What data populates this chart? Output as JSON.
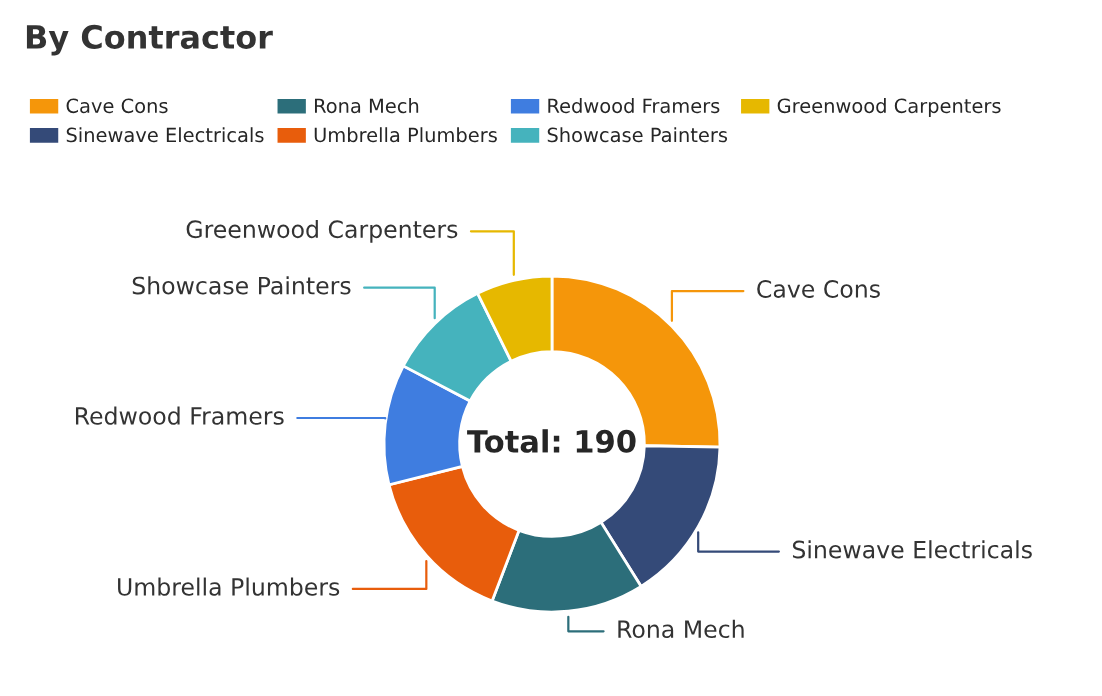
{
  "chart_data": {
    "type": "donut",
    "title": "By Contractor",
    "categories": [
      "Cave Cons",
      "Sinewave Electricals",
      "Rona Mech",
      "Umbrella Plumbers",
      "Redwood Framers",
      "Showcase Painters",
      "Greenwood Carpenters"
    ],
    "values": [
      25.3,
      15.8,
      14.7,
      15.3,
      11.6,
      10.0,
      7.3
    ],
    "colors": [
      "#f5960a",
      "#344a78",
      "#2c6e7a",
      "#e85d0c",
      "#3f7de0",
      "#45b3bd",
      "#e6b800"
    ],
    "annotations": [
      "Total: 190"
    ],
    "legend": "top"
  }
}
